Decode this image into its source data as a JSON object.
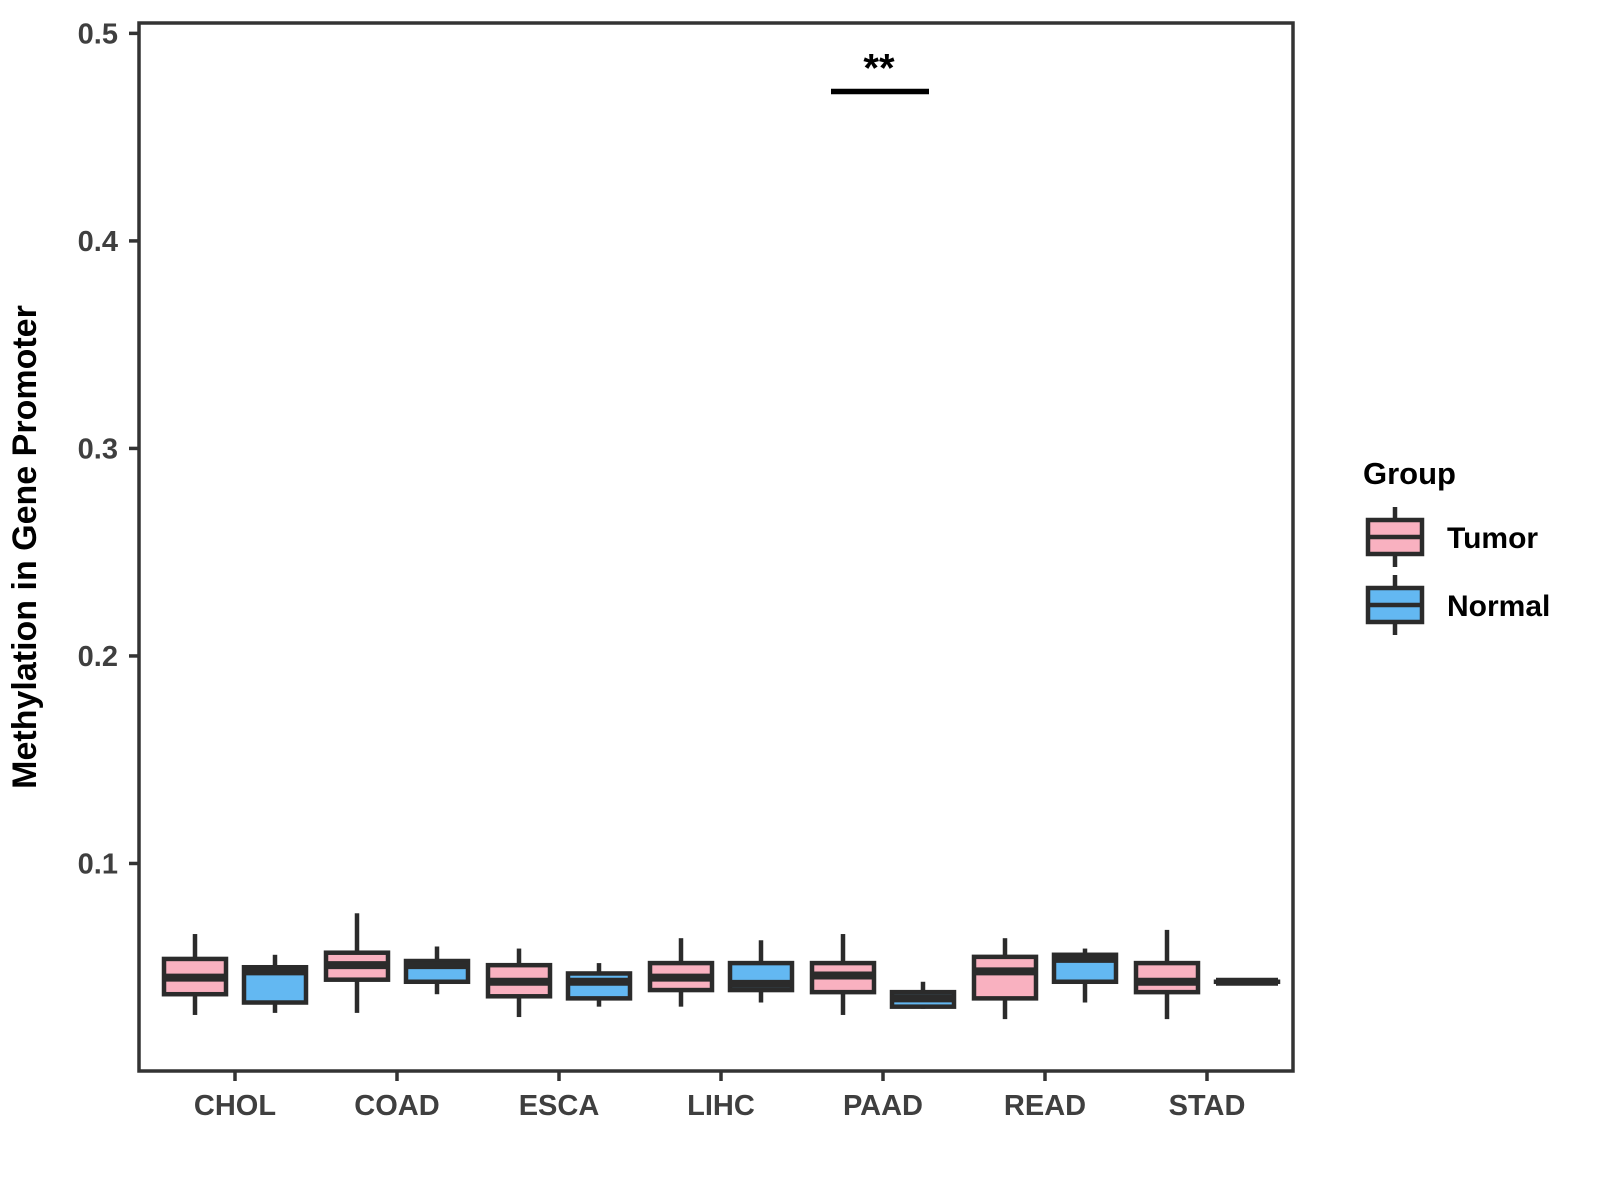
{
  "chart_data": {
    "type": "grouped_boxplot",
    "title": "",
    "xlabel": "",
    "ylabel": "Methylation in Gene Promoter",
    "ylim": [
      0,
      0.505
    ],
    "yticks": [
      0.1,
      0.2,
      0.3,
      0.4,
      0.5
    ],
    "grid": false,
    "panel_border": true,
    "categories": [
      "CHOL",
      "COAD",
      "ESCA",
      "LIHC",
      "PAAD",
      "READ",
      "STAD"
    ],
    "legend": {
      "title": "Group",
      "position": "right",
      "entries": [
        {
          "label": "Tumor",
          "color": "#F9B1C0"
        },
        {
          "label": "Normal",
          "color": "#63B8F2"
        }
      ]
    },
    "series": [
      {
        "name": "Tumor",
        "color": "#F9B1C0",
        "stats_format": [
          "min",
          "q1",
          "median",
          "q3",
          "max"
        ],
        "stats": [
          [
            0.027,
            0.037,
            0.045,
            0.054,
            0.066
          ],
          [
            0.028,
            0.044,
            0.051,
            0.057,
            0.076
          ],
          [
            0.026,
            0.036,
            0.043,
            0.051,
            0.059
          ],
          [
            0.031,
            0.039,
            0.045,
            0.052,
            0.064
          ],
          [
            0.027,
            0.038,
            0.046,
            0.052,
            0.066
          ],
          [
            0.025,
            0.035,
            0.048,
            0.055,
            0.064
          ],
          [
            0.025,
            0.038,
            0.043,
            0.052,
            0.068
          ]
        ]
      },
      {
        "name": "Normal",
        "color": "#63B8F2",
        "stats_format": [
          "min",
          "q1",
          "median",
          "q3",
          "max"
        ],
        "stats": [
          [
            0.028,
            0.033,
            0.048,
            0.05,
            0.056
          ],
          [
            0.037,
            0.043,
            0.051,
            0.053,
            0.06
          ],
          [
            0.031,
            0.035,
            0.043,
            0.047,
            0.052
          ],
          [
            0.033,
            0.039,
            0.042,
            0.052,
            0.063
          ],
          [
            0.03,
            0.031,
            0.035,
            0.038,
            0.043
          ],
          [
            0.033,
            0.043,
            0.054,
            0.056,
            0.059
          ],
          [
            0.043,
            0.043,
            0.043,
            0.043,
            0.043
          ]
        ]
      }
    ],
    "annotations": [
      {
        "category": "PAAD",
        "label": "**",
        "y": 0.472
      }
    ],
    "colors": {
      "box_outline": "#2B2B2B",
      "axis": "#333333",
      "tick_text": "#3F3F3F",
      "title_text": "#000000",
      "annotation": "#000000",
      "panel_bg": "#FFFFFF"
    }
  }
}
